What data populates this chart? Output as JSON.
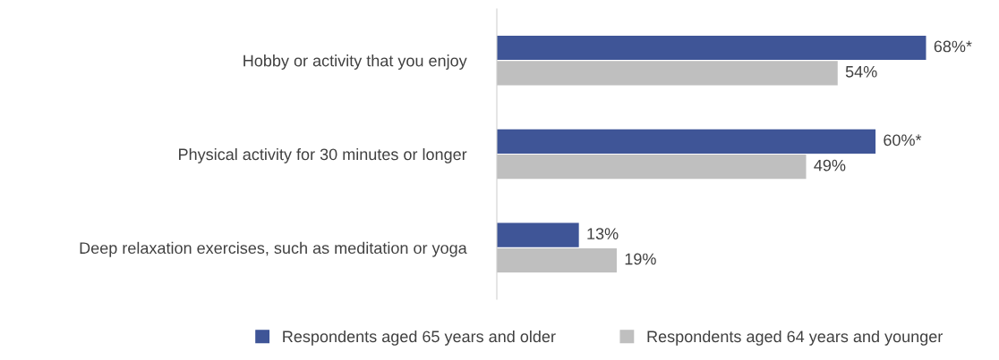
{
  "chart_data": {
    "type": "bar",
    "orientation": "horizontal",
    "categories": [
      "Hobby or activity that you enjoy",
      "Physical activity for 30 minutes or longer",
      "Deep relaxation exercises, such as meditation or yoga"
    ],
    "series": [
      {
        "name": "Respondents aged 65 years and older",
        "color": "#3f5597",
        "values": [
          68,
          60,
          13
        ],
        "value_labels": [
          "68%*",
          "60%*",
          "13%"
        ]
      },
      {
        "name": "Respondents aged 64 years and younger",
        "color": "#bfbfbf",
        "values": [
          54,
          49,
          19
        ],
        "value_labels": [
          "54%",
          "49%",
          "19%"
        ]
      }
    ],
    "tick_labels": "y",
    "legend": "bottom",
    "grid": false
  }
}
